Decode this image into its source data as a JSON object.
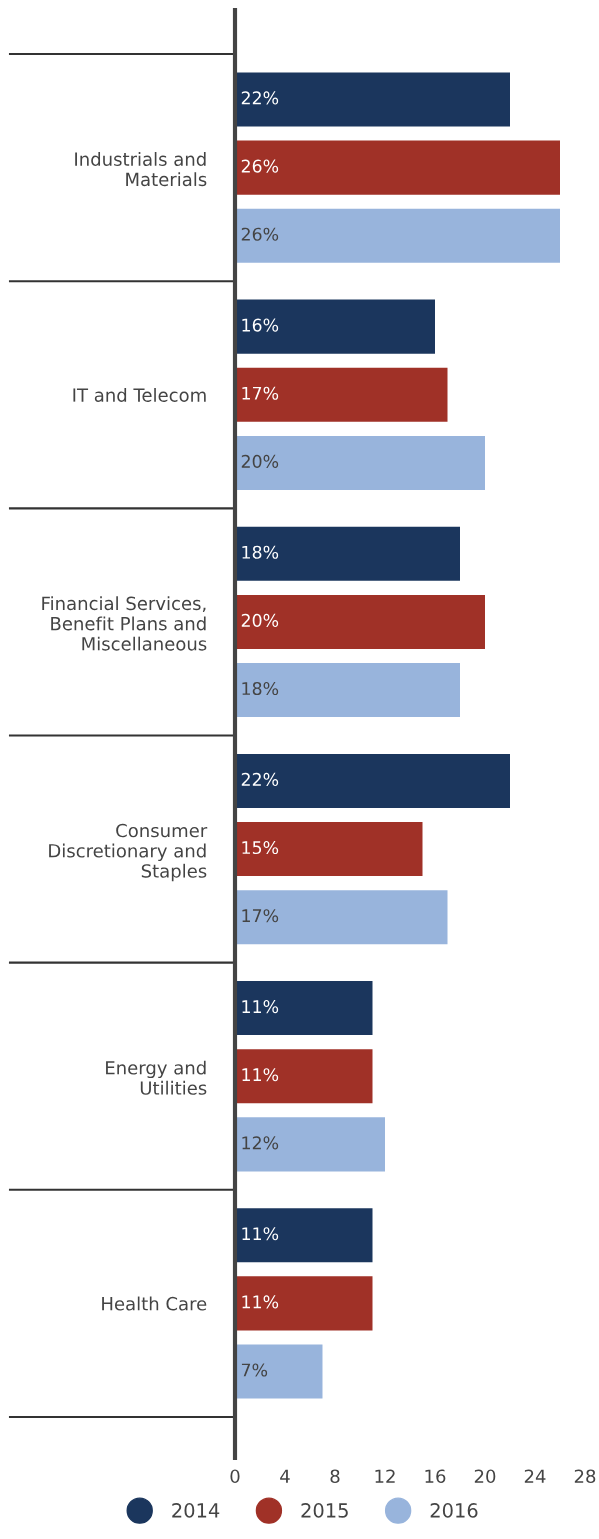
{
  "chart_data": {
    "type": "bar",
    "orientation": "horizontal",
    "categories": [
      "Industrials and\nMaterials",
      "IT and Telecom",
      "Financial Services,\nBenefit Plans and\nMiscellaneous",
      "Consumer\nDiscretionary and\nStaples",
      "Energy and\nUtilities",
      "Health Care"
    ],
    "series": [
      {
        "name": "2014",
        "color": "#1b365d",
        "values": [
          22,
          16,
          18,
          22,
          11,
          11
        ],
        "value_labels": [
          "22%",
          "16%",
          "18%",
          "22%",
          "11%",
          "11%"
        ]
      },
      {
        "name": "2015",
        "color": "#a03127",
        "values": [
          26,
          17,
          20,
          15,
          11,
          11
        ],
        "value_labels": [
          "26%",
          "17%",
          "20%",
          "15%",
          "11%",
          "11%"
        ]
      },
      {
        "name": "2016",
        "color": "#98b4dc",
        "values": [
          26,
          20,
          18,
          17,
          12,
          7
        ],
        "value_labels": [
          "26%",
          "20%",
          "18%",
          "17%",
          "12%",
          "7%"
        ]
      }
    ],
    "xlim": [
      0,
      28
    ],
    "xticks": [
      0,
      4,
      8,
      12,
      16,
      20,
      24,
      28
    ],
    "grid": false,
    "legend": "bottom"
  }
}
